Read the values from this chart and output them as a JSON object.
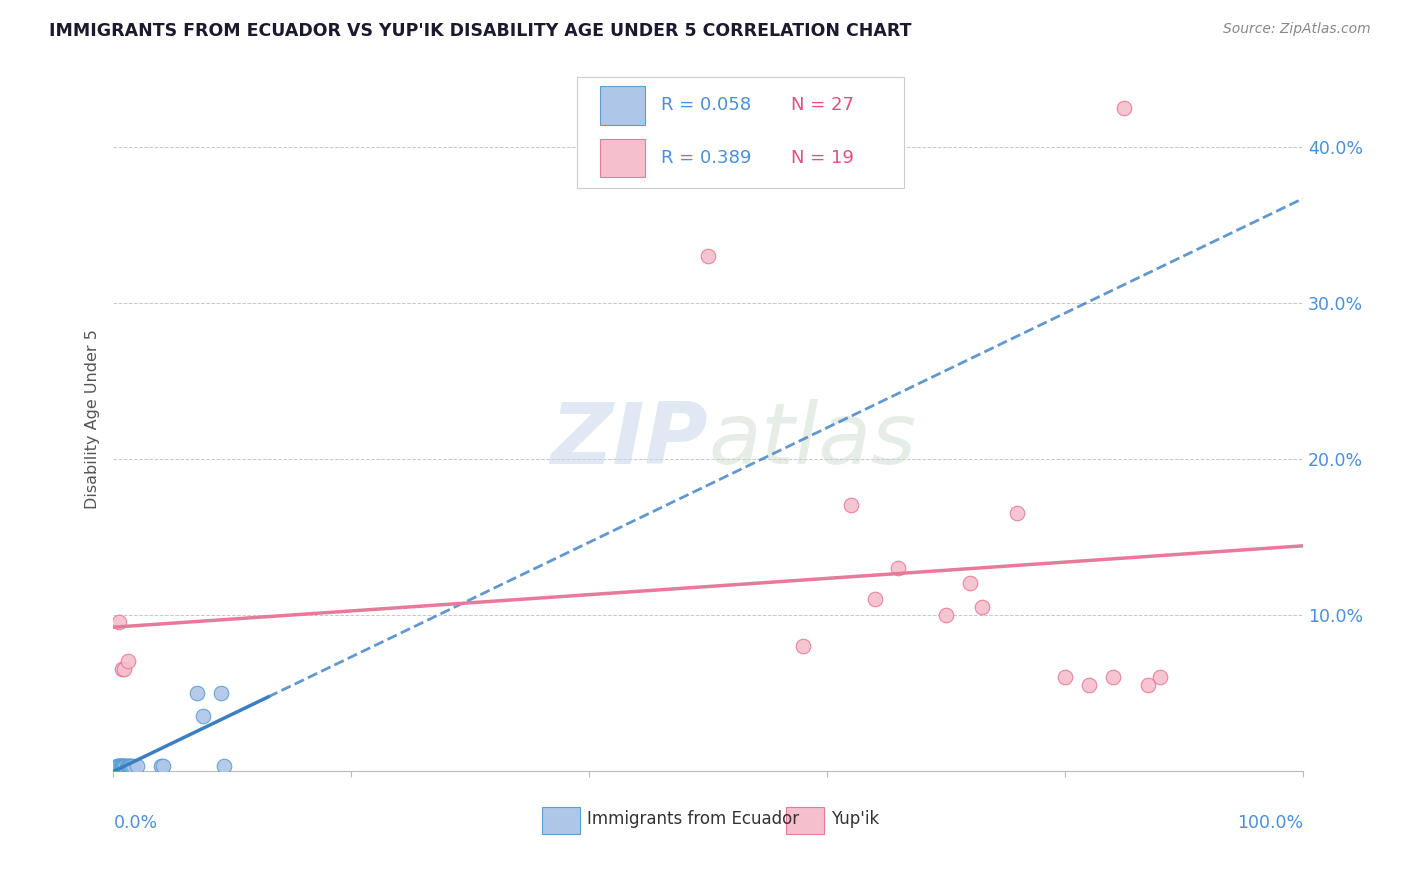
{
  "title": "IMMIGRANTS FROM ECUADOR VS YUP'IK DISABILITY AGE UNDER 5 CORRELATION CHART",
  "source": "Source: ZipAtlas.com",
  "ylabel": "Disability Age Under 5",
  "watermark": "ZIPatlas",
  "blue_r": "R = 0.058",
  "blue_n": "N = 27",
  "pink_r": "R = 0.389",
  "pink_n": "N = 19",
  "blue_fill": "#aec6e8",
  "blue_edge": "#5a9fd4",
  "blue_line": "#3a7fc1",
  "pink_fill": "#f5bfce",
  "pink_edge": "#e8799a",
  "pink_line": "#e8799a",
  "grid_color": "#c8c8c8",
  "right_label_color": "#4a90d9",
  "title_color": "#1a1a2e",
  "source_color": "#888888",
  "ylabel_color": "#555555",
  "blue_points_x": [
    0.003,
    0.004,
    0.004,
    0.005,
    0.005,
    0.006,
    0.006,
    0.007,
    0.007,
    0.008,
    0.008,
    0.009,
    0.01,
    0.01,
    0.011,
    0.012,
    0.013,
    0.014,
    0.015,
    0.016,
    0.02,
    0.04,
    0.042,
    0.07,
    0.075,
    0.09,
    0.093
  ],
  "blue_points_y": [
    0.003,
    0.003,
    0.003,
    0.003,
    0.003,
    0.003,
    0.003,
    0.003,
    0.003,
    0.003,
    0.003,
    0.003,
    0.003,
    0.003,
    0.003,
    0.003,
    0.003,
    0.003,
    0.003,
    0.003,
    0.003,
    0.003,
    0.003,
    0.05,
    0.035,
    0.05,
    0.003
  ],
  "pink_points_x": [
    0.005,
    0.007,
    0.009,
    0.012,
    0.5,
    0.58,
    0.62,
    0.64,
    0.66,
    0.7,
    0.72,
    0.73,
    0.76,
    0.8,
    0.82,
    0.84,
    0.85,
    0.87,
    0.88
  ],
  "pink_points_y": [
    0.095,
    0.065,
    0.065,
    0.07,
    0.33,
    0.08,
    0.17,
    0.11,
    0.13,
    0.1,
    0.12,
    0.105,
    0.165,
    0.06,
    0.055,
    0.06,
    0.425,
    0.055,
    0.06
  ],
  "ylim_max": 0.45,
  "xlim_max": 1.0,
  "ytick_vals": [
    0.0,
    0.1,
    0.2,
    0.3,
    0.4
  ],
  "ytick_labels": [
    "",
    "10.0%",
    "20.0%",
    "30.0%",
    "40.0%"
  ]
}
